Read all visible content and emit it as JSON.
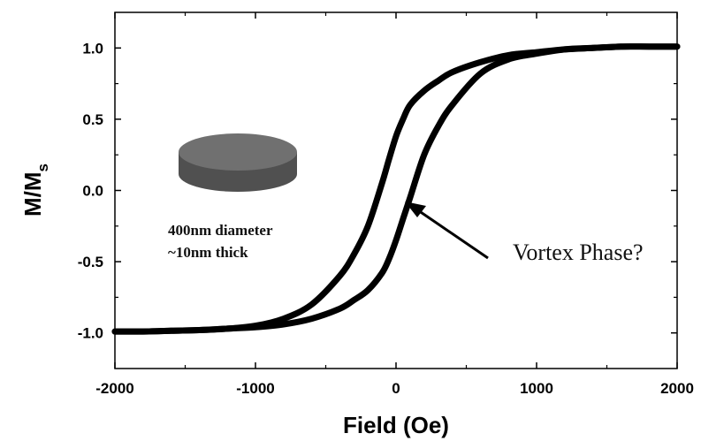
{
  "chart_data": {
    "type": "line",
    "title": "",
    "xlabel": "Field (Oe)",
    "ylabel_main": "M/M",
    "ylabel_sub": "s",
    "xlim": [
      -2000,
      2000
    ],
    "ylim": [
      -1.25,
      1.25
    ],
    "x_ticks": [
      -2000,
      -1000,
      0,
      1000,
      2000
    ],
    "x_tick_labels": [
      "-2000",
      "-1000",
      "0",
      "1000",
      "2000"
    ],
    "y_ticks": [
      1.0,
      0.5,
      0.0,
      -0.5,
      -1.0
    ],
    "y_tick_labels": [
      "1.0",
      "0.5",
      "0.0",
      "-0.5",
      "-1.0"
    ],
    "grid": false,
    "series": [
      {
        "x": [
          -2000,
          -1800,
          -1600,
          -1400,
          -1200,
          -1000,
          -800,
          -600,
          -400,
          -300,
          -200,
          -100,
          -50,
          0,
          50,
          100,
          200,
          300,
          400,
          600,
          800,
          1000,
          1200,
          1400,
          1600,
          1800,
          2000
        ],
        "y": [
          -0.99,
          -0.99,
          -0.985,
          -0.98,
          -0.97,
          -0.95,
          -0.9,
          -0.8,
          -0.6,
          -0.45,
          -0.25,
          0.05,
          0.22,
          0.38,
          0.5,
          0.6,
          0.7,
          0.77,
          0.83,
          0.9,
          0.95,
          0.97,
          0.99,
          1.0,
          1.01,
          1.01,
          1.01
        ]
      },
      {
        "x": [
          2000,
          1800,
          1600,
          1400,
          1200,
          1000,
          800,
          600,
          400,
          300,
          200,
          100,
          50,
          0,
          -50,
          -100,
          -200,
          -300,
          -400,
          -600,
          -800,
          -1000,
          -1200,
          -1400,
          -1600,
          -1800,
          -2000
        ],
        "y": [
          1.01,
          1.01,
          1.01,
          1.0,
          0.99,
          0.96,
          0.92,
          0.82,
          0.6,
          0.45,
          0.25,
          -0.05,
          -0.2,
          -0.35,
          -0.48,
          -0.58,
          -0.7,
          -0.77,
          -0.83,
          -0.9,
          -0.94,
          -0.96,
          -0.97,
          -0.98,
          -0.985,
          -0.99,
          -0.99
        ]
      }
    ],
    "annotations": {
      "disk_line1": "400nm diameter",
      "disk_line2": "~10nm thick",
      "arrow_text": "Vortex Phase?"
    }
  },
  "colors": {
    "curve": "#000000",
    "disk_top": "#707070",
    "disk_side": "#505050"
  }
}
